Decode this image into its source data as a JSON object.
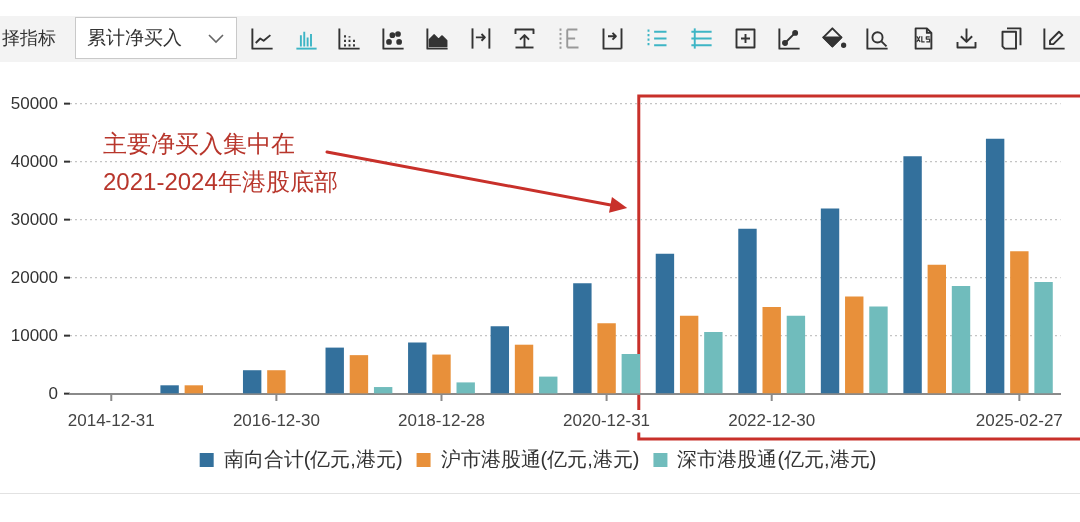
{
  "chart_data": {
    "type": "bar",
    "title": "累计净买入",
    "categories": [
      "2014-12-31",
      null,
      "2016-12-30",
      null,
      "2018-12-28",
      null,
      "2020-12-31",
      null,
      "2022-12-30",
      null,
      null,
      "2025-02-27"
    ],
    "series": [
      {
        "name": "南向合计(亿元,港元)",
        "color": "#33709c",
        "values": [
          0,
          1500,
          4100,
          8000,
          8900,
          11700,
          19100,
          24200,
          28500,
          32000,
          41000,
          44000
        ]
      },
      {
        "name": "沪市港股通(亿元,港元)",
        "color": "#e8903a",
        "values": [
          0,
          1500,
          4100,
          6700,
          6800,
          8500,
          12200,
          13500,
          15000,
          16800,
          22300,
          24600
        ]
      },
      {
        "name": "深市港股通(亿元,港元)",
        "color": "#70bcbc",
        "values": [
          0,
          0,
          0,
          1200,
          2000,
          3000,
          6900,
          10700,
          13500,
          15100,
          18600,
          19300
        ]
      }
    ],
    "ylim": [
      0,
      50000
    ],
    "yticks": [
      0,
      10000,
      20000,
      30000,
      40000,
      50000
    ],
    "grid": "y",
    "legend": "bottom",
    "annotations": [
      "择指标",
      "主要净买入集中在\n2021-2024年港股底部"
    ]
  }
}
